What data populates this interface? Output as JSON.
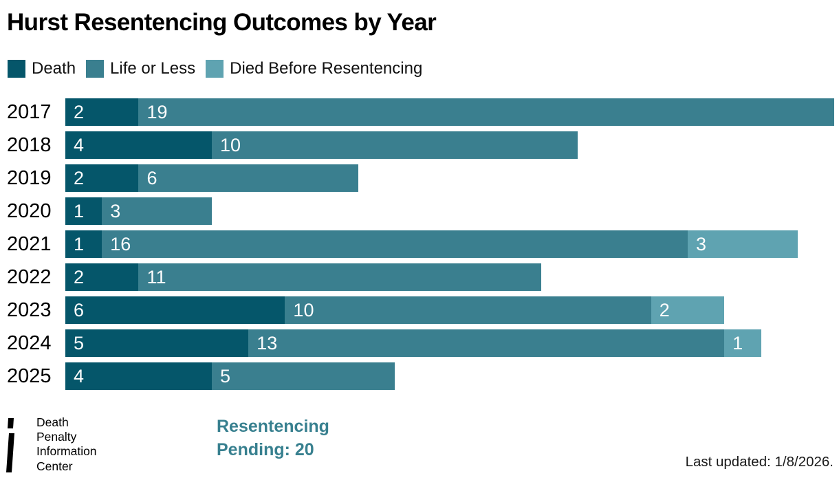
{
  "title": "Hurst Resentencing Outcomes by Year",
  "chart_data": {
    "type": "bar",
    "orientation": "horizontal",
    "stacked": true,
    "title": "Hurst Resentencing Outcomes by Year",
    "categories": [
      "2017",
      "2018",
      "2019",
      "2020",
      "2021",
      "2022",
      "2023",
      "2024",
      "2025"
    ],
    "series": [
      {
        "name": "Death",
        "color": "#05566a",
        "values": [
          2,
          4,
          2,
          1,
          1,
          2,
          6,
          5,
          4
        ]
      },
      {
        "name": "Life or Less",
        "color": "#3a7f8f",
        "values": [
          19,
          10,
          6,
          3,
          16,
          11,
          10,
          13,
          5
        ]
      },
      {
        "name": "Died Before Resentencing",
        "color": "#5fa3b1",
        "values": [
          0,
          0,
          0,
          0,
          3,
          0,
          2,
          1,
          0
        ]
      }
    ],
    "xlim": [
      0,
      21
    ],
    "legend_position": "top",
    "value_labels": "inside-left",
    "grid": false
  },
  "colors": {
    "death": "#05566a",
    "life_or_less": "#3a7f8f",
    "died_before_resentencing": "#5fa3b1",
    "pending_text": "#38808f"
  },
  "footer": {
    "logo": {
      "icon": "dpic-i-mark",
      "lines": [
        "Death",
        "Penalty",
        "Information",
        "Center"
      ]
    },
    "pending": {
      "line1": "Resentencing",
      "line2": "Pending: 20"
    },
    "last_updated": "Last updated: 1/8/2026."
  }
}
